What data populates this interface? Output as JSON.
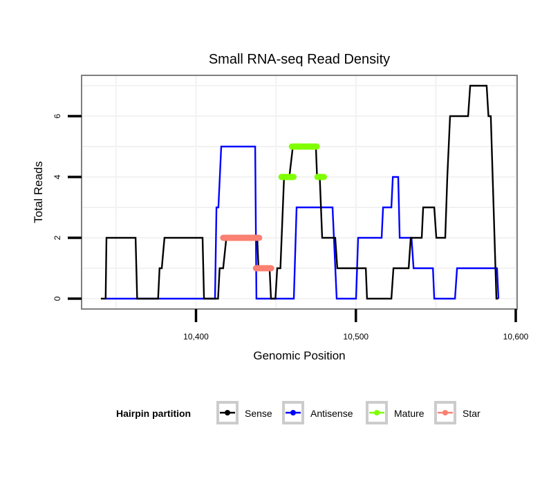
{
  "chart_data": {
    "type": "line",
    "title": "Small RNA-seq Read Density",
    "xlabel": "Genomic Position",
    "ylabel": "Total Reads",
    "xlim": [
      10327,
      10600
    ],
    "ylim": [
      -0.35,
      7.35
    ],
    "x_ticks": [
      10400,
      10500,
      10600
    ],
    "x_tick_labels": [
      "10,400",
      "10,500",
      "10,600"
    ],
    "y_ticks": [
      0,
      2,
      4,
      6
    ],
    "y_tick_labels": [
      "0",
      "2",
      "4",
      "6"
    ],
    "grid": true,
    "legend": {
      "title": "Hairpin partition",
      "position": "bottom",
      "entries": [
        "Sense",
        "Antisense",
        "Mature",
        "Star"
      ]
    },
    "series": [
      {
        "name": "Sense",
        "color": "#000000",
        "points": [
          [
            10340.5,
            0
          ],
          [
            10343.5,
            0
          ],
          [
            10344.0,
            2
          ],
          [
            10362.2,
            2
          ],
          [
            10363.2,
            0
          ],
          [
            10376.3,
            0
          ],
          [
            10377.2,
            1
          ],
          [
            10378.6,
            1
          ],
          [
            10380.3,
            2
          ],
          [
            10404.1,
            2
          ],
          [
            10405.0,
            0
          ],
          [
            10413.8,
            0
          ],
          [
            10414.8,
            1
          ],
          [
            10417.0,
            1
          ],
          [
            10419.0,
            2
          ],
          [
            10438.3,
            2
          ],
          [
            10439.1,
            1
          ],
          [
            10446.0,
            1
          ],
          [
            10446.9,
            0
          ],
          [
            10449.7,
            0
          ],
          [
            10450.8,
            1
          ],
          [
            10452.8,
            1
          ],
          [
            10455.1,
            4
          ],
          [
            10458.4,
            4
          ],
          [
            10460.6,
            5
          ],
          [
            10475.0,
            5
          ],
          [
            10475.7,
            4
          ],
          [
            10477.4,
            4
          ],
          [
            10478.9,
            2
          ],
          [
            10487.1,
            2
          ],
          [
            10488.4,
            1
          ],
          [
            10506.2,
            1
          ],
          [
            10507.0,
            0
          ],
          [
            10522.2,
            0
          ],
          [
            10523.5,
            1
          ],
          [
            10533.0,
            1
          ],
          [
            10534.3,
            2
          ],
          [
            10541.2,
            2
          ],
          [
            10542.1,
            3
          ],
          [
            10549.0,
            3
          ],
          [
            10550.3,
            2
          ],
          [
            10555.9,
            2
          ],
          [
            10557.2,
            4
          ],
          [
            10558.9,
            6
          ],
          [
            10570.2,
            6
          ],
          [
            10571.5,
            7
          ],
          [
            10581.8,
            7
          ],
          [
            10582.9,
            6
          ],
          [
            10584.4,
            6
          ],
          [
            10587.9,
            0
          ],
          [
            10589.0,
            0
          ]
        ]
      },
      {
        "name": "Antisense",
        "color": "#0000ff",
        "points": [
          [
            10344.0,
            0
          ],
          [
            10411.9,
            0
          ],
          [
            10412.8,
            3
          ],
          [
            10414.0,
            3
          ],
          [
            10415.8,
            5
          ],
          [
            10437.0,
            5
          ],
          [
            10437.8,
            0
          ],
          [
            10461.2,
            0
          ],
          [
            10462.9,
            3
          ],
          [
            10485.4,
            3
          ],
          [
            10488.0,
            0
          ],
          [
            10500.1,
            0
          ],
          [
            10501.4,
            2
          ],
          [
            10516.1,
            2
          ],
          [
            10517.0,
            3
          ],
          [
            10522.2,
            3
          ],
          [
            10523.1,
            4
          ],
          [
            10526.5,
            4
          ],
          [
            10527.4,
            2
          ],
          [
            10534.8,
            2
          ],
          [
            10536.1,
            1
          ],
          [
            10548.2,
            1
          ],
          [
            10549.0,
            0
          ],
          [
            10562.0,
            0
          ],
          [
            10563.3,
            1
          ],
          [
            10588.3,
            1
          ],
          [
            10589.2,
            0
          ]
        ]
      },
      {
        "name": "Mature",
        "color": "#7fff00",
        "segments": [
          [
            [
              10453.5,
              4
            ],
            [
              10461.0,
              4
            ]
          ],
          [
            [
              10460.0,
              5
            ],
            [
              10475.5,
              5
            ]
          ],
          [
            [
              10476.0,
              4
            ],
            [
              10480.0,
              4
            ]
          ]
        ]
      },
      {
        "name": "Star",
        "color": "#fa8072",
        "segments": [
          [
            [
              10417.0,
              2
            ],
            [
              10439.5,
              2
            ]
          ],
          [
            [
              10437.5,
              1
            ],
            [
              10447.0,
              1
            ]
          ]
        ]
      }
    ]
  }
}
